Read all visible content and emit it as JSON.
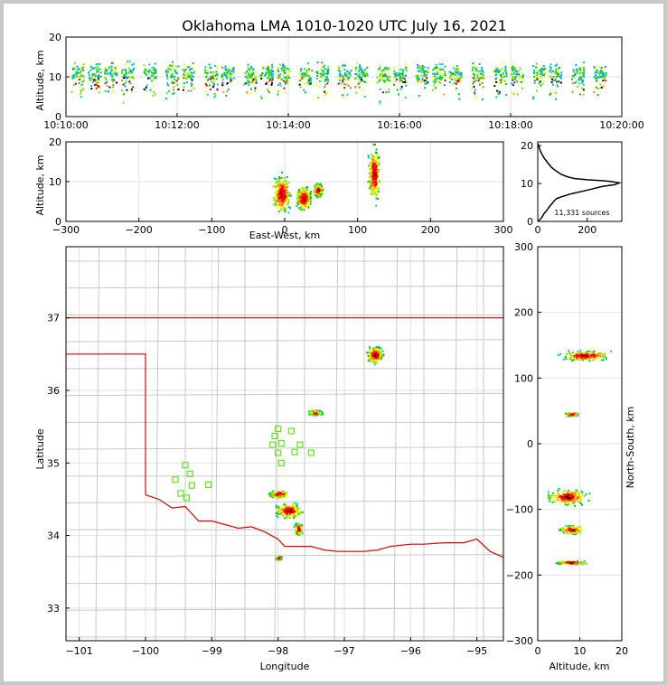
{
  "chart_data": [
    {
      "id": "time_height",
      "type": "scatter",
      "title": "Oklahoma LMA 1010-1020 UTC July 16, 2021",
      "ylabel": "Altitude, km",
      "xlabel": "",
      "xlim": [
        0,
        10
      ],
      "ylim": [
        0,
        20
      ],
      "grid": true,
      "x_ticks": [
        "10:10:00",
        "10:12:00",
        "10:14:00",
        "10:16:00",
        "10:18:00",
        "10:20:00"
      ],
      "y_ticks": [
        "0",
        "10",
        "20"
      ],
      "density_columns_minutes": [
        0.2,
        0.5,
        0.8,
        1.1,
        1.5,
        1.9,
        2.2,
        2.6,
        2.9,
        3.3,
        3.6,
        3.9,
        4.3,
        4.6,
        5.0,
        5.3,
        5.7,
        6.0,
        6.4,
        6.7,
        7.0,
        7.4,
        7.8,
        8.1,
        8.5,
        8.8,
        9.2,
        9.6
      ]
    },
    {
      "id": "ew_altitude",
      "type": "heatmap",
      "xlabel": "East-West, km",
      "ylabel": "Altitude, km",
      "xlim": [
        -300,
        300
      ],
      "ylim": [
        0,
        20
      ],
      "grid": true,
      "x_ticks": [
        "−300",
        "−200",
        "−100",
        "0",
        "100",
        "200",
        "300"
      ],
      "y_ticks": [
        "0",
        "10",
        "20"
      ],
      "clusters": [
        {
          "x": -5,
          "y": 7,
          "w": 30,
          "h": 12
        },
        {
          "x": 25,
          "y": 6,
          "w": 25,
          "h": 7
        },
        {
          "x": 45,
          "y": 8,
          "w": 15,
          "h": 4
        },
        {
          "x": 122,
          "y": 12,
          "w": 20,
          "h": 17
        }
      ]
    },
    {
      "id": "alt_histogram",
      "type": "line",
      "annotation": "11,331 sources",
      "xlim": [
        0,
        340
      ],
      "ylim": [
        0,
        21
      ],
      "x_ticks": [
        "0",
        "200"
      ],
      "y_ticks": [
        "0",
        "10",
        "20"
      ],
      "profile": [
        [
          0,
          0
        ],
        [
          10,
          0.6
        ],
        [
          18,
          1.2
        ],
        [
          25,
          2
        ],
        [
          35,
          2.8
        ],
        [
          45,
          3.7
        ],
        [
          55,
          4.5
        ],
        [
          65,
          5.3
        ],
        [
          75,
          6
        ],
        [
          95,
          6.5
        ],
        [
          130,
          7.2
        ],
        [
          170,
          7.8
        ],
        [
          210,
          8.4
        ],
        [
          260,
          9.2
        ],
        [
          310,
          9.7
        ],
        [
          330,
          10.2
        ],
        [
          290,
          10.6
        ],
        [
          250,
          10.8
        ],
        [
          200,
          11
        ],
        [
          150,
          11.3
        ],
        [
          120,
          11.8
        ],
        [
          95,
          12.4
        ],
        [
          75,
          13.3
        ],
        [
          55,
          14.3
        ],
        [
          40,
          15.5
        ],
        [
          25,
          16.8
        ],
        [
          15,
          18
        ],
        [
          8,
          19
        ],
        [
          4,
          19.8
        ],
        [
          1,
          20.5
        ]
      ]
    },
    {
      "id": "plan_view",
      "type": "heatmap",
      "xlabel": "Longitude",
      "ylabel": "Latitude",
      "xlim": [
        -101.2,
        -94.6
      ],
      "ylim": [
        32.55,
        37.98
      ],
      "grid": true,
      "x_ticks": [
        "−101",
        "−100",
        "−99",
        "−98",
        "−97",
        "−96",
        "−95"
      ],
      "y_ticks": [
        "33",
        "34",
        "35",
        "36",
        "37"
      ],
      "clusters": [
        {
          "lon": -96.55,
          "lat": 36.5,
          "w": 0.3,
          "h": 0.3
        },
        {
          "lon": -97.45,
          "lat": 35.7,
          "w": 0.25,
          "h": 0.08
        },
        {
          "lon": -98.0,
          "lat": 34.58,
          "w": 0.35,
          "h": 0.12
        },
        {
          "lon": -97.85,
          "lat": 34.35,
          "w": 0.5,
          "h": 0.25
        },
        {
          "lon": -97.7,
          "lat": 34.1,
          "w": 0.15,
          "h": 0.2
        },
        {
          "lon": -98.0,
          "lat": 33.7,
          "w": 0.1,
          "h": 0.06
        }
      ],
      "stations": [
        {
          "lon": -98.0,
          "lat": 35.47
        },
        {
          "lon": -98.05,
          "lat": 35.37
        },
        {
          "lon": -98.08,
          "lat": 35.25
        },
        {
          "lon": -97.95,
          "lat": 35.27
        },
        {
          "lon": -97.8,
          "lat": 35.44
        },
        {
          "lon": -97.67,
          "lat": 35.25
        },
        {
          "lon": -97.75,
          "lat": 35.15
        },
        {
          "lon": -97.5,
          "lat": 35.14
        },
        {
          "lon": -98.0,
          "lat": 35.14
        },
        {
          "lon": -97.95,
          "lat": 35.0
        },
        {
          "lon": -99.4,
          "lat": 34.97
        },
        {
          "lon": -99.33,
          "lat": 34.85
        },
        {
          "lon": -99.55,
          "lat": 34.77
        },
        {
          "lon": -99.3,
          "lat": 34.69
        },
        {
          "lon": -99.05,
          "lat": 34.7
        },
        {
          "lon": -99.47,
          "lat": 34.58
        },
        {
          "lon": -99.38,
          "lat": 34.52
        }
      ]
    },
    {
      "id": "ns_altitude",
      "type": "heatmap",
      "xlabel": "Altitude, km",
      "ylabel": "North-South, km",
      "xlim": [
        0,
        20
      ],
      "ylim": [
        -300,
        300
      ],
      "grid": true,
      "x_ticks": [
        "0",
        "10",
        "20"
      ],
      "y_ticks": [
        "−300",
        "−200",
        "−100",
        "0",
        "100",
        "200",
        "300"
      ],
      "clusters": [
        {
          "x": 11,
          "y": 135,
          "w": 14,
          "h": 18
        },
        {
          "x": 8,
          "y": 46,
          "w": 4,
          "h": 6
        },
        {
          "x": 7,
          "y": -80,
          "w": 12,
          "h": 28
        },
        {
          "x": 8,
          "y": -130,
          "w": 7,
          "h": 15
        },
        {
          "x": 8,
          "y": -180,
          "w": 9,
          "h": 6
        }
      ]
    }
  ]
}
